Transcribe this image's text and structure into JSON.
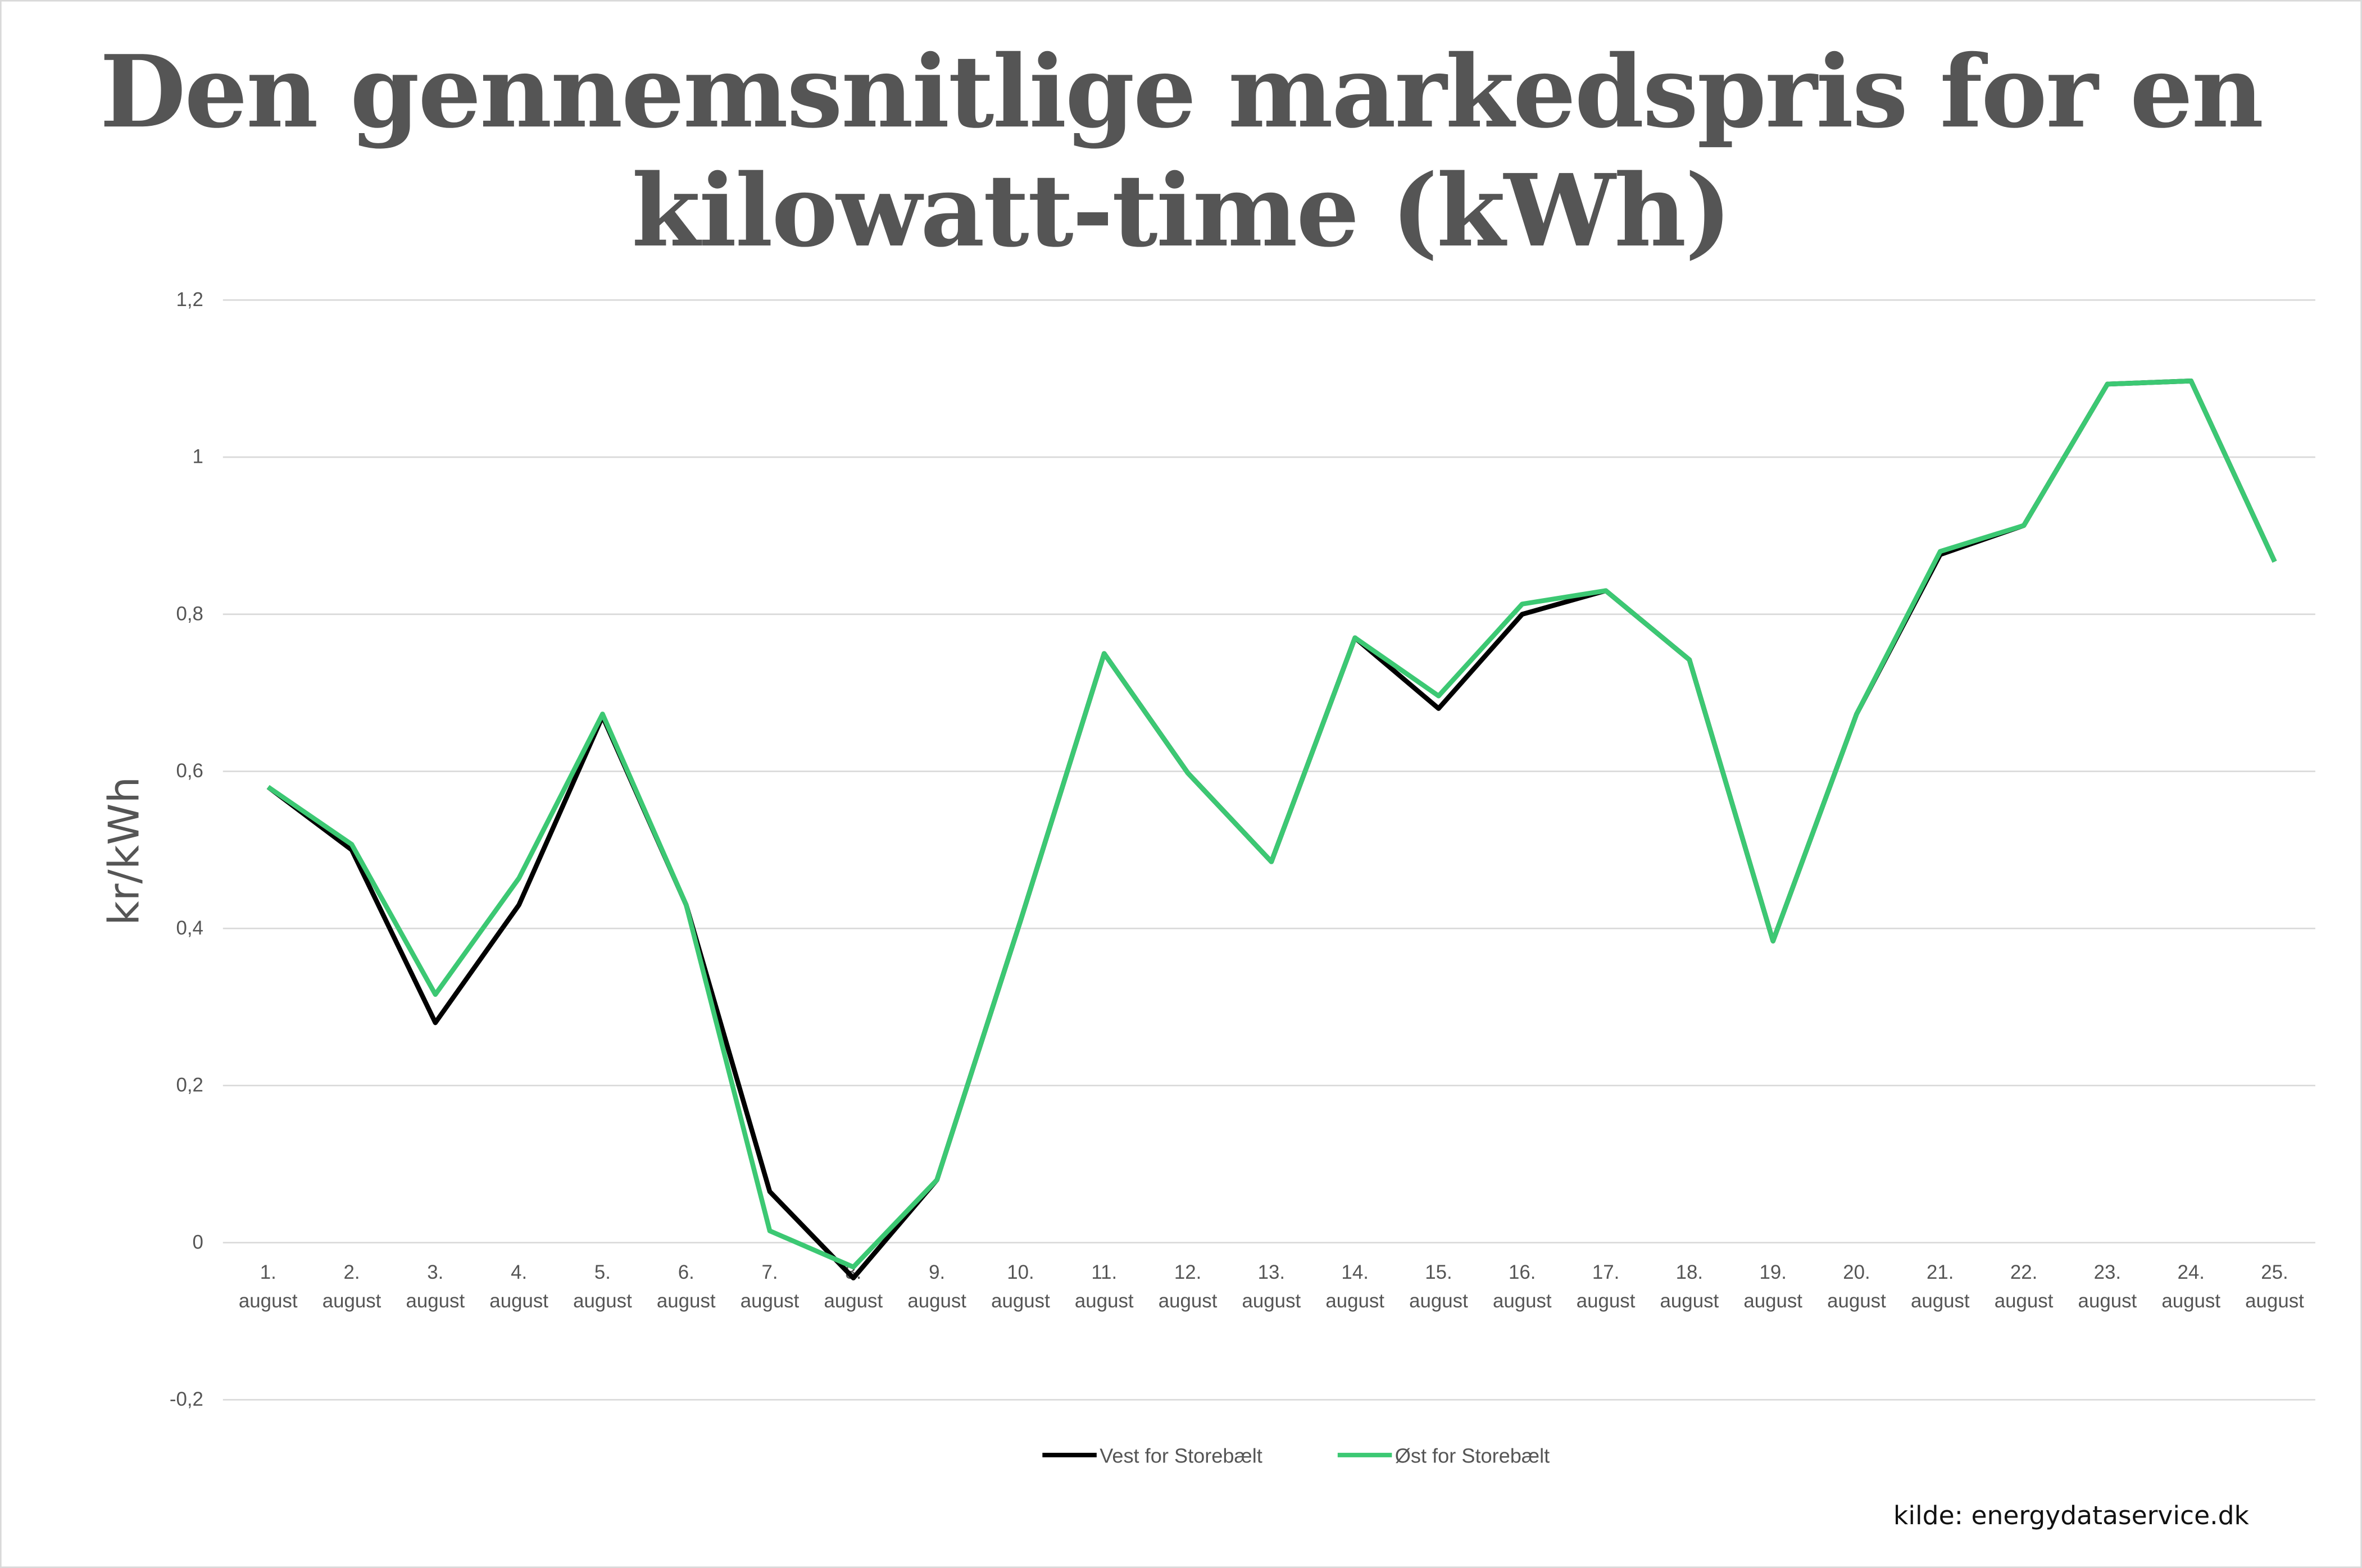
{
  "chart_data": {
    "type": "line",
    "title": [
      "Den gennemsnitlige markedspris for en",
      "kilowatt-time (kWh)"
    ],
    "ylabel": "kr/kWh",
    "xlabel": "",
    "ylim": [
      -0.2,
      1.2
    ],
    "yticks": [
      -0.2,
      0,
      0.2,
      0.4,
      0.6,
      0.8,
      1,
      1.2
    ],
    "ytick_labels": [
      "-0,2",
      "0",
      "0,2",
      "0,4",
      "0,6",
      "0,8",
      "1",
      "1,2"
    ],
    "grid": true,
    "legend_placement": "bottom",
    "categories": [
      [
        "1.",
        "august"
      ],
      [
        "2.",
        "august"
      ],
      [
        "3.",
        "august"
      ],
      [
        "4.",
        "august"
      ],
      [
        "5.",
        "august"
      ],
      [
        "6.",
        "august"
      ],
      [
        "7.",
        "august"
      ],
      [
        "8.",
        "august"
      ],
      [
        "9.",
        "august"
      ],
      [
        "10.",
        "august"
      ],
      [
        "11.",
        "august"
      ],
      [
        "12.",
        "august"
      ],
      [
        "13.",
        "august"
      ],
      [
        "14.",
        "august"
      ],
      [
        "15.",
        "august"
      ],
      [
        "16.",
        "august"
      ],
      [
        "17.",
        "august"
      ],
      [
        "18.",
        "august"
      ],
      [
        "19.",
        "august"
      ],
      [
        "20.",
        "august"
      ],
      [
        "21.",
        "august"
      ],
      [
        "22.",
        "august"
      ],
      [
        "23.",
        "august"
      ],
      [
        "24.",
        "august"
      ],
      [
        "25.",
        "august"
      ]
    ],
    "series": [
      {
        "name": "Vest for Storebælt",
        "color": "#000000",
        "values": [
          0.58,
          0.5,
          0.28,
          0.43,
          0.67,
          0.43,
          0.065,
          -0.045,
          0.08,
          0.41,
          0.75,
          0.598,
          0.485,
          0.77,
          0.68,
          0.8,
          0.83,
          0.742,
          0.384,
          0.673,
          0.876,
          0.913,
          1.093,
          1.097,
          0.867
        ]
      },
      {
        "name": "Øst for Storebælt",
        "color": "#3cc873",
        "values": [
          0.58,
          0.507,
          0.316,
          0.464,
          0.673,
          0.43,
          0.015,
          -0.031,
          0.08,
          0.41,
          0.75,
          0.598,
          0.485,
          0.77,
          0.696,
          0.813,
          0.83,
          0.742,
          0.384,
          0.673,
          0.88,
          0.913,
          1.093,
          1.097,
          0.867
        ]
      }
    ]
  },
  "source": "kilde: energydataservice.dk",
  "colors": {
    "grid": "#d9d9d9",
    "title": "#555555",
    "border": "#d9d9d9"
  }
}
